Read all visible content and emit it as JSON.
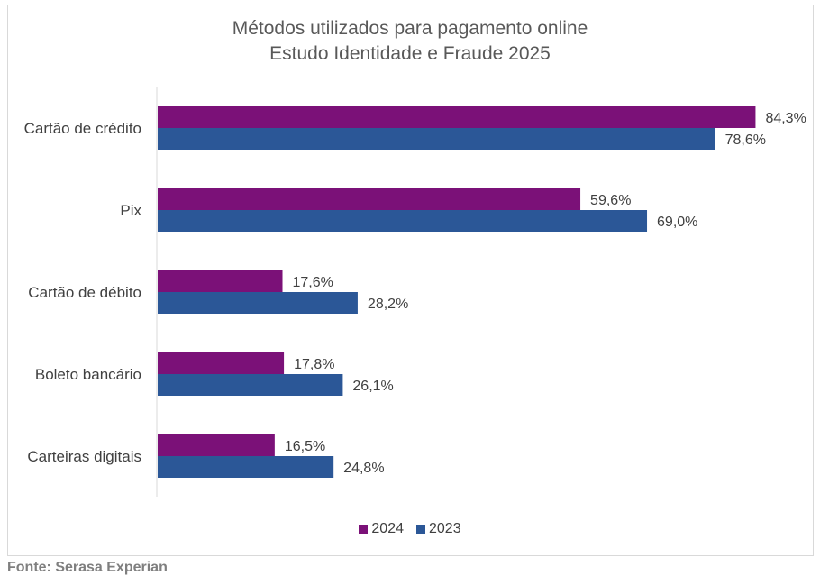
{
  "chart_data": {
    "type": "bar",
    "orientation": "horizontal",
    "title_line1": "Métodos utilizados para pagamento online",
    "title_line2": "Estudo Identidade e Fraude 2025",
    "categories": [
      "Cartão de crédito",
      "Pix",
      "Cartão de débito",
      "Boleto bancário",
      "Carteiras digitais"
    ],
    "series": [
      {
        "name": "2024",
        "color": "#7b1178",
        "values": [
          84.3,
          59.6,
          17.6,
          17.8,
          16.5
        ],
        "labels": [
          "84,3%",
          "59,6%",
          "17,6%",
          "17,8%",
          "16,5%"
        ]
      },
      {
        "name": "2023",
        "color": "#2b5797",
        "values": [
          78.6,
          69.0,
          28.2,
          26.1,
          24.8
        ],
        "labels": [
          "78,6%",
          "69,0%",
          "28,2%",
          "26,1%",
          "24,8%"
        ]
      }
    ],
    "xlim": [
      0,
      100
    ],
    "grid": false,
    "legend_position": "bottom"
  },
  "source": "Fonte: Serasa Experian"
}
